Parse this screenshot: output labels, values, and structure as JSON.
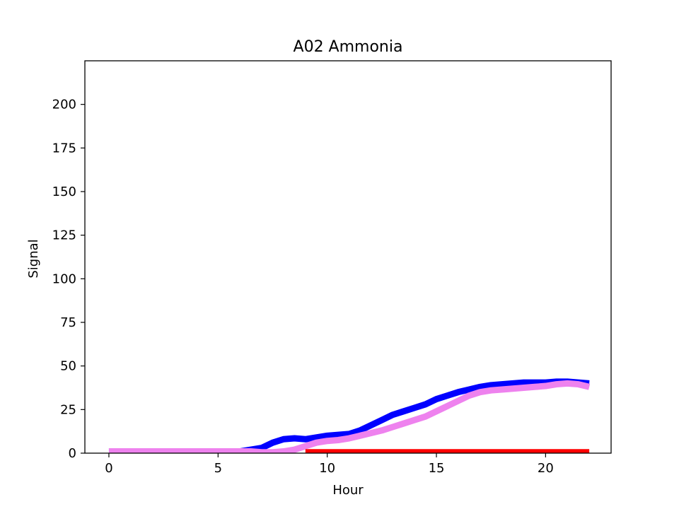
{
  "chart_data": {
    "type": "line",
    "title": "A02 Ammonia",
    "xlabel": "Hour",
    "ylabel": "Signal",
    "xlim": [
      -1.1,
      23.0
    ],
    "ylim": [
      0,
      225
    ],
    "xticks": [
      0,
      5,
      10,
      15,
      20
    ],
    "yticks": [
      0,
      25,
      50,
      75,
      100,
      125,
      150,
      175,
      200
    ],
    "grid": false,
    "legend": "none",
    "series": [
      {
        "color": "#0000ff",
        "x": [
          0,
          1,
          2,
          3,
          4,
          5,
          5.5,
          6,
          6.5,
          7,
          7.5,
          8,
          8.5,
          9,
          9.5,
          10,
          10.5,
          11,
          11.5,
          12,
          12.5,
          13,
          13.5,
          14,
          14.5,
          15,
          15.5,
          16,
          16.5,
          17,
          17.5,
          18,
          18.5,
          19,
          19.5,
          20,
          20.5,
          21,
          21.5,
          22
        ],
        "y": [
          1,
          1,
          1,
          1,
          1,
          1,
          1,
          1,
          2,
          3,
          6,
          8,
          8.5,
          8,
          9,
          10,
          10.5,
          11,
          13,
          16,
          19,
          22,
          24,
          26,
          28,
          31,
          33,
          35,
          36.5,
          38,
          39,
          39.5,
          40,
          40.5,
          40.5,
          40.5,
          41,
          41,
          40.5,
          40
        ]
      },
      {
        "color": "#ee82ee",
        "x": [
          0,
          1,
          2,
          3,
          4,
          5,
          6,
          6.5,
          7,
          7.5,
          8,
          8.5,
          9,
          9.5,
          10,
          10.5,
          11,
          11.5,
          12,
          12.5,
          13,
          13.5,
          14,
          14.5,
          15,
          15.5,
          16,
          16.5,
          17,
          17.5,
          18,
          18.5,
          19,
          19.5,
          20,
          20.5,
          21,
          21.5,
          22
        ],
        "y": [
          1,
          1,
          1,
          1,
          1,
          1,
          1,
          1,
          0.5,
          0.5,
          1,
          2,
          4,
          6,
          7,
          7.5,
          8.5,
          10,
          11.5,
          13,
          15,
          17,
          19,
          21,
          24,
          27,
          30,
          33,
          35,
          36,
          36.5,
          37,
          37.5,
          38,
          38.5,
          39.5,
          40,
          39.5,
          38
        ]
      },
      {
        "color": "#ff0000",
        "x": [
          9,
          10,
          12,
          14,
          16,
          18,
          20,
          22
        ],
        "y": [
          0.5,
          0.5,
          0.5,
          0.5,
          0.5,
          0.5,
          0.5,
          0.5
        ]
      }
    ]
  }
}
